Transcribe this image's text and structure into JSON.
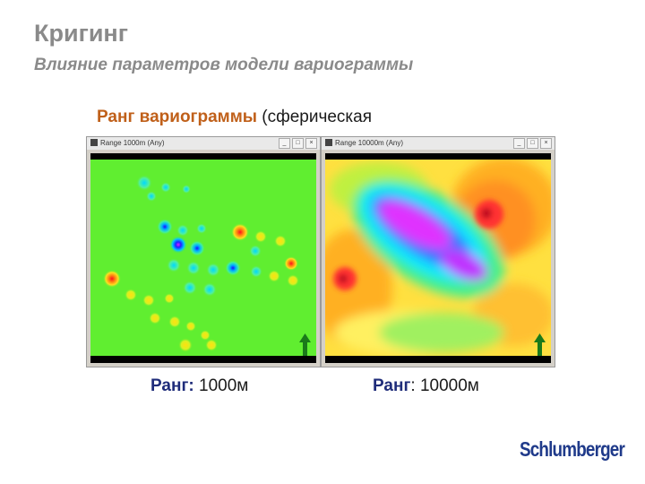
{
  "title": "Кригинг",
  "subtitle": "Влияние параметров модели вариограммы",
  "heading": {
    "accent": "Ранг вариограммы",
    "rest": " (сферическая"
  },
  "windows": [
    {
      "title": "Range 1000m (Any)"
    },
    {
      "title": "Range 10000m (Any)"
    }
  ],
  "captions": [
    {
      "label": "Ранг:",
      "value": " 1000м"
    },
    {
      "label": "Ранг",
      "value": ": 10000м"
    }
  ],
  "logo": "Schlumberger",
  "colors": {
    "title_gray": "#8a8a8a",
    "accent_orange": "#c0601a",
    "caption_blue": "#1f2c7a",
    "logo_blue": "#1f3a8a",
    "map_background": "#60ee30"
  }
}
